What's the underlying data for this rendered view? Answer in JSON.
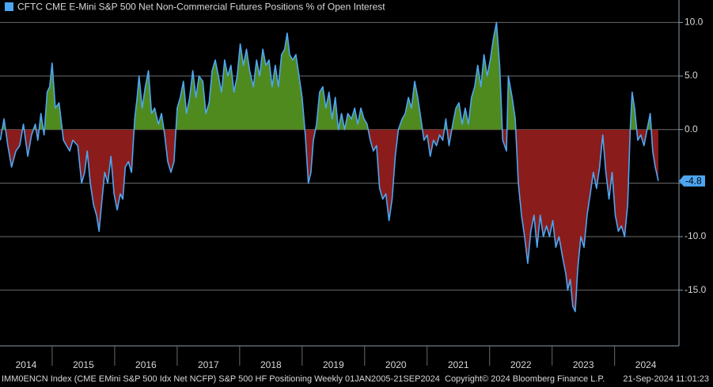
{
  "chart_data": {
    "type": "area",
    "title": "CFTC CME E-Mini S&P 500 Net Non-Commercial Futures Positions % of Open Interest",
    "source": "IMM0ENCN Index (CME EMini S&P 500 Idx Net NCFP) S&P 500 HF Positioning  Weekly 01JAN2005-21SEP2024",
    "copyright": "Copyright© 2024 Bloomberg Finance L.P.",
    "timestamp": "21-Sep-2024 11:01:23",
    "color": "#4ea6f2",
    "fill_above": "#4f8a1f",
    "fill_below": "#8b1c1c",
    "grid": true,
    "xlim": [
      2014.165,
      2025.03
    ],
    "ylim": [
      -20.2,
      12.1
    ],
    "yticks": [
      {
        "value": 10,
        "label": "10.0"
      },
      {
        "value": 5,
        "label": "5.0"
      },
      {
        "value": 0,
        "label": "0.0"
      },
      {
        "value": -5,
        "label": "-5.0"
      },
      {
        "value": -10,
        "label": "-10.0"
      },
      {
        "value": -15,
        "label": "-15.0"
      }
    ],
    "xticks": [
      {
        "value": 2014,
        "label": "2014"
      },
      {
        "value": 2015,
        "label": "2015"
      },
      {
        "value": 2016,
        "label": "2016"
      },
      {
        "value": 2017,
        "label": "2017"
      },
      {
        "value": 2018,
        "label": "2018"
      },
      {
        "value": 2019,
        "label": "2019"
      },
      {
        "value": 2020,
        "label": "2020"
      },
      {
        "value": 2021,
        "label": "2021"
      },
      {
        "value": 2022,
        "label": "2022"
      },
      {
        "value": 2023,
        "label": "2023"
      },
      {
        "value": 2024,
        "label": "2024"
      }
    ],
    "x": [
      2014.17,
      2014.23,
      2014.29,
      2014.35,
      2014.42,
      2014.48,
      2014.54,
      2014.61,
      2014.67,
      2014.73,
      2014.77,
      2014.82,
      2014.87,
      2014.92,
      2014.96,
      2015.0,
      2015.05,
      2015.11,
      2015.18,
      2015.23,
      2015.28,
      2015.33,
      2015.41,
      2015.47,
      2015.52,
      2015.56,
      2015.61,
      2015.66,
      2015.71,
      2015.75,
      2015.79,
      2015.84,
      2015.89,
      2015.94,
      2015.99,
      2016.04,
      2016.09,
      2016.13,
      2016.17,
      2016.22,
      2016.27,
      2016.32,
      2016.36,
      2016.39,
      2016.44,
      2016.49,
      2016.54,
      2016.59,
      2016.64,
      2016.7,
      2016.75,
      2016.8,
      2016.85,
      2016.9,
      2016.95,
      2017.0,
      2017.05,
      2017.1,
      2017.15,
      2017.2,
      2017.25,
      2017.3,
      2017.35,
      2017.41,
      2017.46,
      2017.51,
      2017.56,
      2017.61,
      2017.66,
      2017.71,
      2017.76,
      2017.81,
      2017.86,
      2017.91,
      2017.96,
      2018.01,
      2018.06,
      2018.11,
      2018.16,
      2018.22,
      2018.27,
      2018.32,
      2018.37,
      2018.42,
      2018.47,
      2018.52,
      2018.57,
      2018.62,
      2018.67,
      2018.72,
      2018.76,
      2018.8,
      2018.85,
      2018.9,
      2018.95,
      2019.0,
      2019.05,
      2019.1,
      2019.14,
      2019.18,
      2019.23,
      2019.28,
      2019.33,
      2019.38,
      2019.43,
      2019.48,
      2019.53,
      2019.58,
      2019.63,
      2019.68,
      2019.73,
      2019.79,
      2019.84,
      2019.89,
      2019.94,
      2019.99,
      2020.04,
      2020.09,
      2020.14,
      2020.19,
      2020.24,
      2020.29,
      2020.34,
      2020.39,
      2020.44,
      2020.49,
      2020.54,
      2020.6,
      2020.65,
      2020.7,
      2020.75,
      2020.8,
      2020.85,
      2020.9,
      2020.95,
      2021.0,
      2021.05,
      2021.1,
      2021.15,
      2021.2,
      2021.25,
      2021.3,
      2021.35,
      2021.41,
      2021.46,
      2021.51,
      2021.56,
      2021.61,
      2021.66,
      2021.71,
      2021.76,
      2021.81,
      2021.86,
      2021.91,
      2021.96,
      2022.01,
      2022.06,
      2022.11,
      2022.16,
      2022.21,
      2022.27,
      2022.3,
      2022.36,
      2022.41,
      2022.46,
      2022.51,
      2022.56,
      2022.61,
      2022.66,
      2022.71,
      2022.76,
      2022.81,
      2022.86,
      2022.91,
      2022.96,
      2023.01,
      2023.06,
      2023.11,
      2023.17,
      2023.22,
      2023.25,
      2023.29,
      2023.33,
      2023.37,
      2023.41,
      2023.46,
      2023.51,
      2023.56,
      2023.61,
      2023.66,
      2023.71,
      2023.76,
      2023.81,
      2023.86,
      2023.91,
      2023.96,
      2024.01,
      2024.06,
      2024.11,
      2024.16,
      2024.21,
      2024.25,
      2024.28,
      2024.32,
      2024.37,
      2024.42,
      2024.47,
      2024.52,
      2024.57,
      2024.61,
      2024.65,
      2024.67,
      2024.7
    ],
    "values": [
      -1,
      1,
      -1.5,
      -3.5,
      -2,
      -1.5,
      0.5,
      -2.5,
      -0.5,
      0.5,
      -1,
      1.5,
      -0.5,
      3.5,
      4,
      6.2,
      2,
      2.5,
      -1,
      -1.5,
      -2,
      -1,
      -1.5,
      -5,
      -4,
      -2,
      -5,
      -7,
      -8,
      -9.5,
      -7,
      -4,
      -5,
      -2.5,
      -6,
      -7.5,
      -6,
      -6.5,
      -3.5,
      -3,
      -4,
      1,
      3,
      5,
      2,
      4,
      5.5,
      1.5,
      2,
      0.5,
      1.5,
      -0.5,
      -3,
      -4,
      -3,
      2,
      3,
      4.5,
      1.5,
      3,
      5.5,
      3,
      5,
      4.5,
      1.5,
      2.5,
      5.5,
      6.5,
      5,
      3.5,
      6.5,
      5,
      6,
      3.5,
      5,
      8,
      6,
      7.5,
      5.5,
      4,
      6.5,
      5,
      7.5,
      6,
      6.5,
      4,
      6,
      4,
      7,
      7.5,
      9,
      7,
      6.5,
      7,
      5,
      3,
      -0.5,
      -5,
      -4,
      -1,
      0.5,
      3.5,
      4,
      2,
      3.5,
      1,
      3,
      0,
      1.5,
      0,
      1.5,
      1,
      2,
      0.5,
      2,
      1,
      0.5,
      -1,
      -2,
      -1.5,
      -5.5,
      -6.5,
      -6,
      -8.5,
      -6.5,
      -2.5,
      0,
      1,
      1.5,
      3,
      2,
      4.5,
      3,
      1,
      -1,
      -0.5,
      -2.5,
      -1,
      -1.5,
      -0.5,
      -1,
      1,
      -1.5,
      0.5,
      2,
      2.5,
      0.5,
      2,
      0.5,
      3,
      4,
      6,
      4,
      7,
      5,
      6.5,
      8.5,
      10,
      6,
      -1,
      -2,
      5,
      3,
      1,
      -5,
      -8,
      -10,
      -12.5,
      -9.5,
      -8,
      -11,
      -8,
      -10,
      -9,
      -10,
      -8.5,
      -11,
      -10,
      -12,
      -13.5,
      -15,
      -14,
      -16.5,
      -17,
      -13,
      -10,
      -11,
      -8,
      -6,
      -4,
      -5.5,
      -3.5,
      -0.5,
      -4,
      -6.5,
      -4,
      -8,
      -9.5,
      -9,
      -10,
      -7,
      0,
      3.5,
      2,
      -1,
      -0.5,
      -1.5,
      0,
      1.5,
      -2,
      -3.5,
      -4,
      -4.8
    ]
  }
}
